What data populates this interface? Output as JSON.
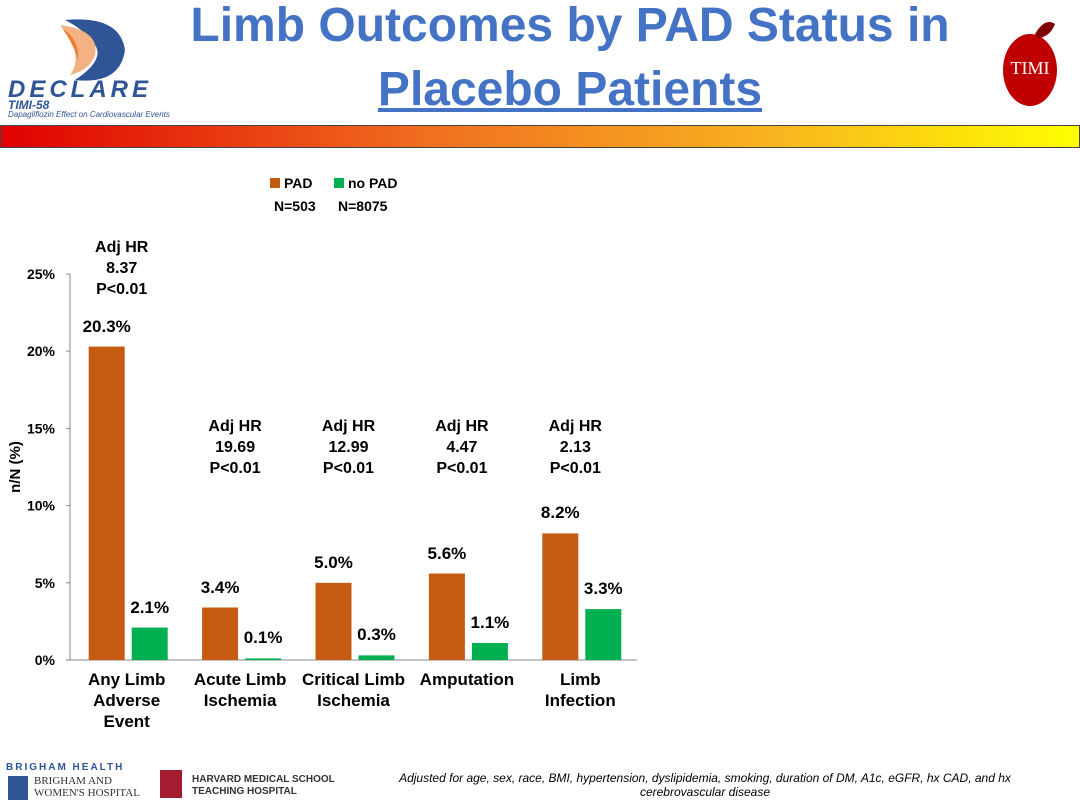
{
  "header": {
    "title_line1": "Limb Outcomes by PAD Status in",
    "title_line2": "Placebo Patients",
    "logo_left": {
      "name": "DECLARE",
      "trial": "TIMI-58",
      "tagline": "Dapagliflozin Effect on Cardiovascular Events"
    },
    "logo_right": "TIMI"
  },
  "chart_data": {
    "type": "bar",
    "categories": [
      "Any Limb\nAdverse\nEvent",
      "Acute Limb\nIschemia",
      "Critical Limb\nIschemia",
      "Amputation",
      "Limb\nInfection"
    ],
    "series": [
      {
        "name": "PAD",
        "n": "N=503",
        "color": "#c55a11",
        "values": [
          20.3,
          3.4,
          5.0,
          5.6,
          8.2
        ],
        "value_labels": [
          "20.3%",
          "3.4%",
          "5.0%",
          "5.6%",
          "8.2%"
        ]
      },
      {
        "name": "no PAD",
        "n": "N=8075",
        "color": "#00b050",
        "values": [
          2.1,
          0.1,
          0.3,
          1.1,
          3.3
        ],
        "value_labels": [
          "2.1%",
          "0.1%",
          "0.3%",
          "1.1%",
          "3.3%"
        ]
      }
    ],
    "annotations": [
      "Adj HR\n8.37\nP<0.01",
      "Adj HR\n19.69\nP<0.01",
      "Adj HR\n12.99\nP<0.01",
      "Adj HR\n4.47\nP<0.01",
      "Adj HR\n2.13\nP<0.01"
    ],
    "ylabel": "n/N (%)",
    "ylim": [
      0,
      25
    ],
    "yticks": [
      {
        "value": 0,
        "label": "0%"
      },
      {
        "value": 5,
        "label": "5%"
      },
      {
        "value": 10,
        "label": "10%"
      },
      {
        "value": 15,
        "label": "15%"
      },
      {
        "value": 20,
        "label": "20%"
      },
      {
        "value": 25,
        "label": "25%"
      }
    ],
    "grid": false
  },
  "footer": {
    "brigham_health": "BRIGHAM HEALTH",
    "brigham_hospital": "BRIGHAM AND\nWOMEN'S HOSPITAL",
    "harvard": "HARVARD MEDICAL SCHOOL\nTEACHING HOSPITAL",
    "note": "Adjusted for age, sex, race, BMI, hypertension, dyslipidemia, smoking, duration of DM, A1c, eGFR, hx CAD, and hx cerebrovascular disease"
  }
}
